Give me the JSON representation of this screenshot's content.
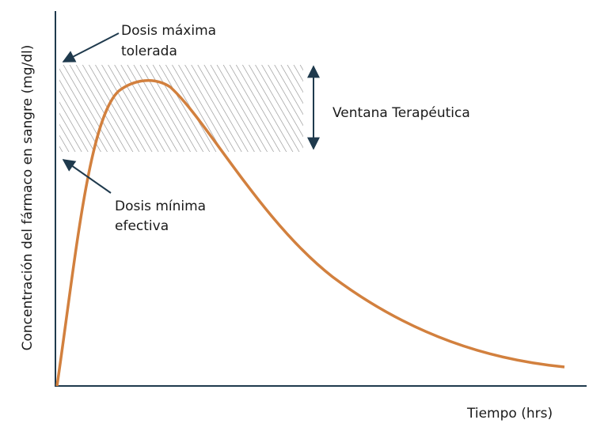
{
  "axes": {
    "y_label": "Concentración del fármaco en sangre (mg/dl)",
    "x_label": "Tiempo (hrs)"
  },
  "annotations": {
    "max_dose": [
      "Dosis máxima",
      "tolerada"
    ],
    "min_dose": [
      "Dosis mínima",
      "efectiva"
    ],
    "window": "Ventana Terapéutica"
  }
}
